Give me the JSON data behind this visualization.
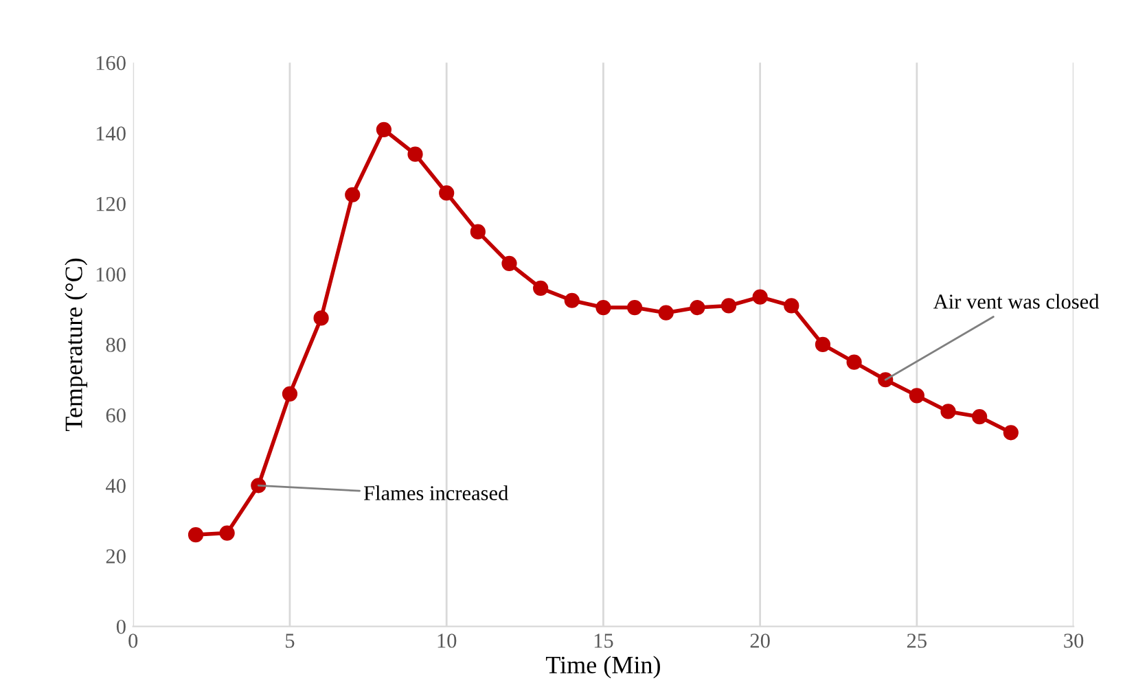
{
  "chart_data": {
    "type": "line",
    "xlabel": "Time (Min)",
    "ylabel": "Temperature (°C)",
    "x": [
      2,
      3,
      4,
      5,
      6,
      7,
      8,
      9,
      10,
      11,
      12,
      13,
      14,
      15,
      16,
      17,
      18,
      19,
      20,
      21,
      22,
      23,
      24,
      25,
      26,
      27,
      28
    ],
    "series": [
      {
        "color": "#c00000",
        "values": [
          26,
          26.5,
          40,
          66,
          87.5,
          122.5,
          141,
          134,
          123,
          112,
          103,
          96,
          92.5,
          90.5,
          90.5,
          89,
          90.5,
          91,
          93.5,
          91,
          80,
          75,
          70,
          65.5,
          61,
          59.5,
          55
        ]
      }
    ],
    "xlim": [
      0,
      30
    ],
    "xticks": [
      0,
      5,
      10,
      15,
      20,
      25,
      30
    ],
    "ylim": [
      0,
      160
    ],
    "yticks": [
      0,
      20,
      40,
      60,
      80,
      100,
      120,
      140,
      160
    ],
    "grid": "x",
    "marker": "circle",
    "line_style": "solid",
    "annotations": [
      {
        "text": "Flames increased",
        "x": 4,
        "y": 40
      },
      {
        "text": "Air vent was closed",
        "x": 24,
        "y": 70
      }
    ]
  }
}
